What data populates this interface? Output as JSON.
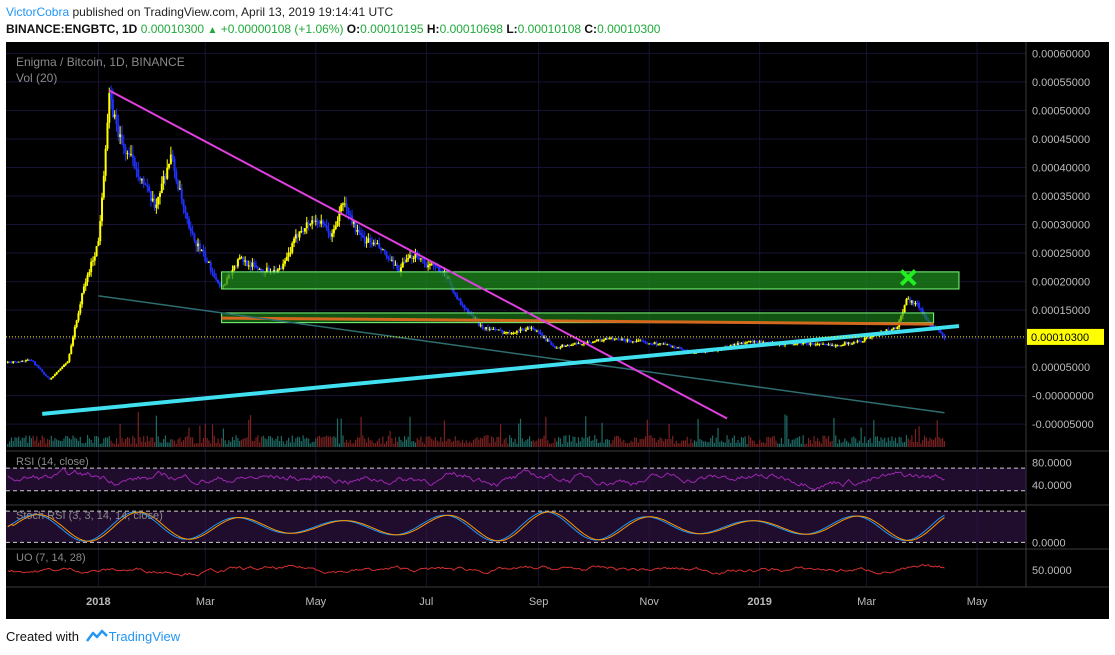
{
  "header": {
    "author": "VictorCobra",
    "published_text": " published on TradingView.com, April 13, 2019 19:14:41 UTC",
    "symbol": "BINANCE:ENGBTC, 1D",
    "last": "0.00010300",
    "change": "+0.00000108 (+1.06%)",
    "o_label": "O:",
    "o": "0.00010195",
    "h_label": "H:",
    "h": "0.00010698",
    "l_label": "L:",
    "l": "0.00010108",
    "c_label": "C:",
    "c": "0.00010300"
  },
  "footer": {
    "created_with": "Created with",
    "brand": "TradingView"
  },
  "colors": {
    "background": "#000000",
    "candle_up": "#ffff00",
    "candle_down": "#2030ff",
    "trendline_down": "#e040e0",
    "trendline_support": "#40e0f0",
    "zone": "#1e8a1e",
    "rsi": "#9c27b0",
    "stoch_k": "#2196f3",
    "stoch_d": "#ff9800",
    "uo": "#d32f2f",
    "price_tag": "#ffff00"
  },
  "chart_data": {
    "type": "candlestick",
    "title": "Enigma / Bitcoin, 1D, BINANCE",
    "volume_label": "Vol (20)",
    "price_axis_ticks": [
      "0.00060000",
      "0.00055000",
      "0.00050000",
      "0.00045000",
      "0.00040000",
      "0.00035000",
      "0.00030000",
      "0.00025000",
      "0.00020000",
      "0.00015000",
      "0.00010000",
      "0.00005000",
      "-0.00000000",
      "-0.00005000"
    ],
    "price_axis_values": [
      0.0006,
      0.00055,
      0.0005,
      0.00045,
      0.0004,
      0.00035,
      0.0003,
      0.00025,
      0.0002,
      0.00015,
      0.0001,
      5e-05,
      0,
      -5e-05
    ],
    "last_price_label": "0.00010300",
    "last_price": 0.000103,
    "ylim": [
      -9e-05,
      0.00062
    ],
    "time_axis_labels": [
      "2018",
      "Mar",
      "May",
      "Jul",
      "Sep",
      "Nov",
      "2019",
      "Mar",
      "May"
    ],
    "time_axis_dates": [
      "2018-01-01",
      "2018-03-01",
      "2018-05-01",
      "2018-07-01",
      "2018-09-01",
      "2018-11-01",
      "2019-01-01",
      "2019-03-01",
      "2019-05-01"
    ],
    "xlim": [
      "2017-11-11",
      "2019-05-28"
    ],
    "price_path": [
      [
        "2017-11-12",
        5.8e-05
      ],
      [
        "2017-11-25",
        6.2e-05
      ],
      [
        "2017-12-05",
        2.8e-05
      ],
      [
        "2017-12-15",
        6e-05
      ],
      [
        "2017-12-24",
        0.00019
      ],
      [
        "2018-01-01",
        0.00027
      ],
      [
        "2018-01-07",
        0.00052
      ],
      [
        "2018-01-14",
        0.00044
      ],
      [
        "2018-01-22",
        0.0004
      ],
      [
        "2018-02-01",
        0.00033
      ],
      [
        "2018-02-10",
        0.00042
      ],
      [
        "2018-02-20",
        0.00029
      ],
      [
        "2018-03-01",
        0.00024
      ],
      [
        "2018-03-10",
        0.00019
      ],
      [
        "2018-03-20",
        0.00024
      ],
      [
        "2018-04-01",
        0.00022
      ],
      [
        "2018-04-12",
        0.00022
      ],
      [
        "2018-04-22",
        0.00029
      ],
      [
        "2018-05-01",
        0.00031
      ],
      [
        "2018-05-10",
        0.00028
      ],
      [
        "2018-05-16",
        0.00034
      ],
      [
        "2018-05-25",
        0.00028
      ],
      [
        "2018-06-05",
        0.00026
      ],
      [
        "2018-06-15",
        0.00022
      ],
      [
        "2018-06-25",
        0.00025
      ],
      [
        "2018-07-01",
        0.00023
      ],
      [
        "2018-07-10",
        0.00022
      ],
      [
        "2018-07-20",
        0.00016
      ],
      [
        "2018-08-01",
        0.00012
      ],
      [
        "2018-08-15",
        0.00011
      ],
      [
        "2018-08-28",
        0.00012
      ],
      [
        "2018-09-10",
        8.5e-05
      ],
      [
        "2018-09-25",
        9.2e-05
      ],
      [
        "2018-10-10",
        0.0001
      ],
      [
        "2018-10-25",
        9.5e-05
      ],
      [
        "2018-11-10",
        9e-05
      ],
      [
        "2018-11-25",
        7.5e-05
      ],
      [
        "2018-12-08",
        8e-05
      ],
      [
        "2018-12-16",
        8.8e-05
      ],
      [
        "2018-12-25",
        9.5e-05
      ],
      [
        "2019-01-10",
        9e-05
      ],
      [
        "2019-01-25",
        9.2e-05
      ],
      [
        "2019-02-10",
        8.8e-05
      ],
      [
        "2019-02-25",
        9.5e-05
      ],
      [
        "2019-03-08",
        0.00011
      ],
      [
        "2019-03-18",
        0.00012
      ],
      [
        "2019-03-23",
        0.00017
      ],
      [
        "2019-03-29",
        0.00016
      ],
      [
        "2019-04-05",
        0.000125
      ],
      [
        "2019-04-13",
        0.000103
      ]
    ],
    "drawings": {
      "descending_trendline": {
        "from": [
          "2018-01-07",
          0.000535
        ],
        "to": [
          "2018-12-14",
          -4e-05
        ]
      },
      "support_trendline": {
        "from": [
          "2017-12-01",
          -3.2e-05
        ],
        "to": [
          "2019-04-21",
          0.000122
        ]
      },
      "teal_line": {
        "from": [
          "2018-01-01",
          0.000175
        ],
        "to": [
          "2019-04-13",
          -3e-05
        ]
      },
      "resistance_zone": {
        "from": "2018-03-10",
        "to": "2019-04-21",
        "top": 0.000217,
        "bottom": 0.000187
      },
      "zone_2": {
        "from": "2018-03-10",
        "to": "2019-04-07",
        "top": 0.000145,
        "bottom": 0.000128
      },
      "orange_line": {
        "from": "2018-03-10",
        "to": "2019-04-07",
        "price": 0.000136
      },
      "x_marker": [
        "2019-03-24",
        0.000207
      ]
    },
    "indicators": [
      {
        "name": "RSI (14, close)",
        "ticks": [
          "80.0000",
          "40.0000"
        ],
        "tick_values": [
          80,
          40
        ],
        "bands": [
          70,
          30
        ],
        "ylim": [
          10,
          95
        ]
      },
      {
        "name": "Stoch RSI (3, 3, 14, 14, close)",
        "ticks": [
          "0.0000"
        ],
        "tick_values": [
          0
        ],
        "ylim": [
          -15,
          110
        ]
      },
      {
        "name": "UO (7, 14, 28)",
        "ticks": [
          "50.0000"
        ],
        "tick_values": [
          50
        ],
        "ylim": [
          20,
          85
        ]
      }
    ]
  }
}
